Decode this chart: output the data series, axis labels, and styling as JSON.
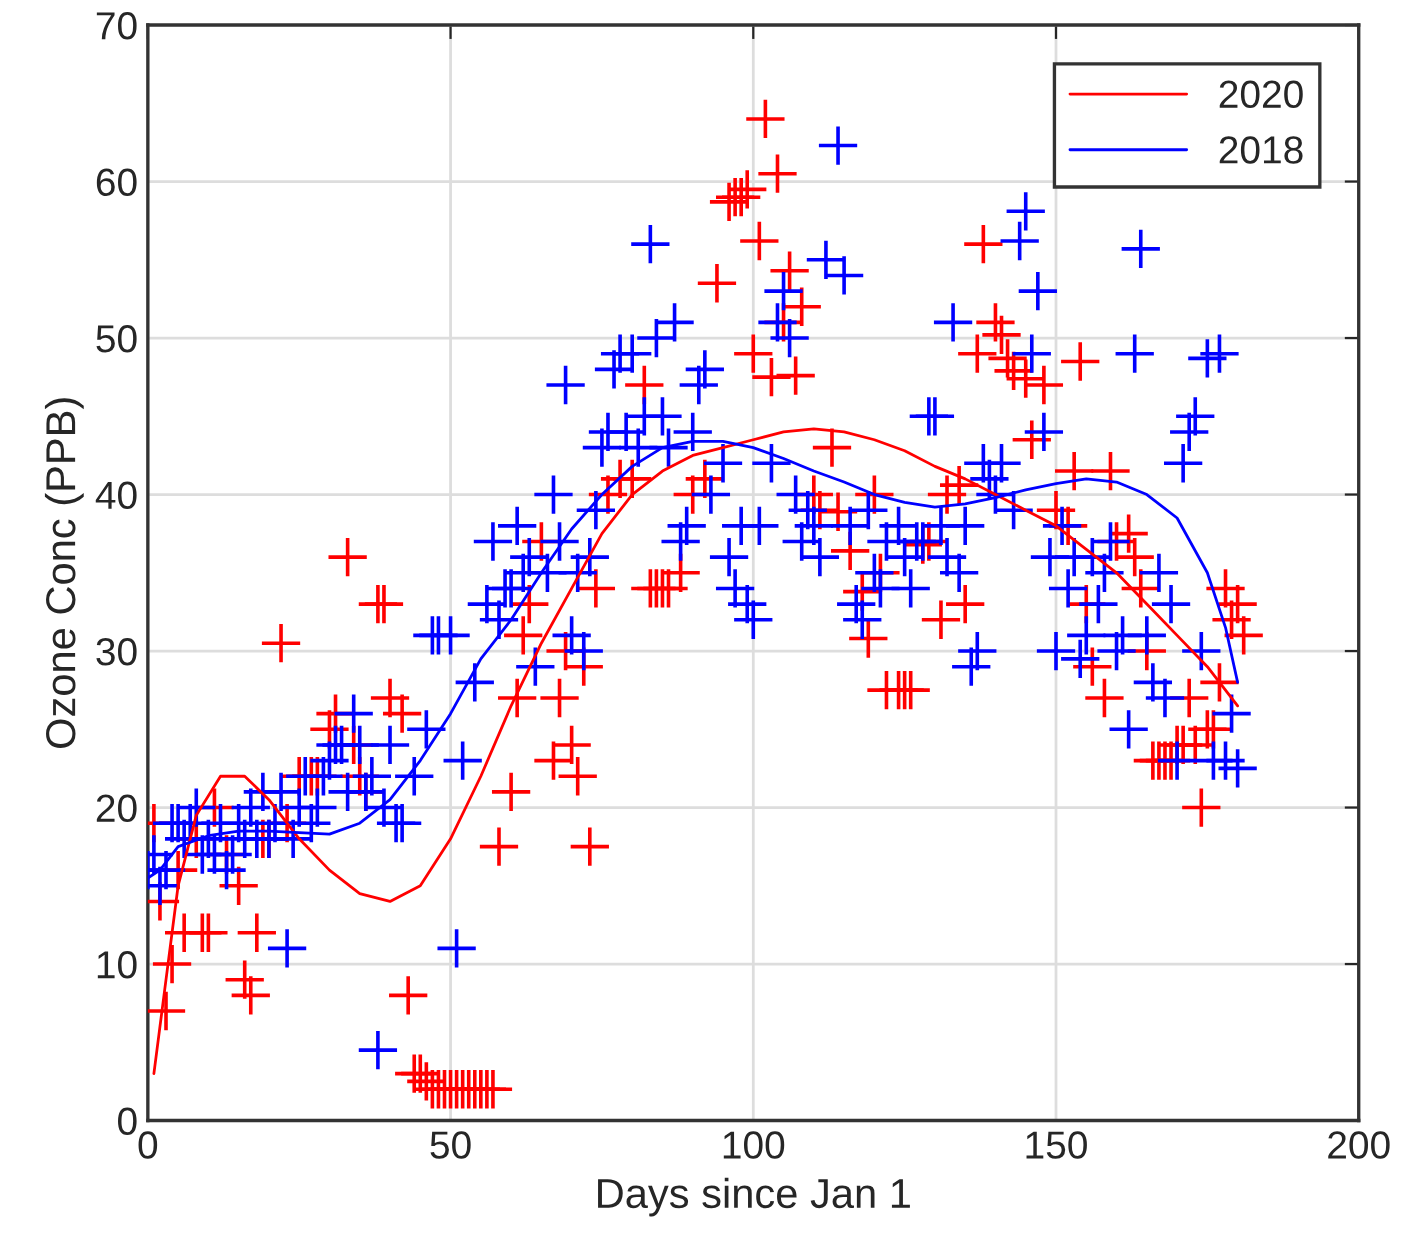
{
  "chart_data": {
    "type": "scatter",
    "xlabel": "Days since Jan 1",
    "ylabel": "Ozone Conc (PPB)",
    "xlim": [
      0,
      200
    ],
    "ylim": [
      0,
      70
    ],
    "xticks": [
      0,
      50,
      100,
      150,
      200
    ],
    "yticks": [
      0,
      10,
      20,
      30,
      40,
      50,
      60,
      70
    ],
    "grid": true,
    "legend": "top right",
    "marker": "cross",
    "series": [
      {
        "color": "#ff0000",
        "x": [
          1,
          2,
          3,
          4,
          5,
          6,
          8,
          9,
          10,
          11,
          13,
          15,
          16,
          17,
          18,
          19,
          20,
          22,
          23,
          25,
          27,
          28,
          30,
          31,
          33,
          34,
          35,
          36,
          38,
          39,
          40,
          42,
          43,
          44,
          45,
          46,
          47,
          48,
          49,
          50,
          51,
          52,
          53,
          54,
          55,
          56,
          57,
          58,
          60,
          61,
          62,
          63,
          65,
          67,
          68,
          69,
          70,
          71,
          72,
          73,
          74,
          76,
          78,
          80,
          82,
          83,
          84,
          85,
          86,
          88,
          90,
          92,
          94,
          96,
          97,
          98,
          99,
          100,
          101,
          102,
          103,
          104,
          105,
          106,
          107,
          108,
          110,
          111,
          113,
          114,
          116,
          118,
          119,
          120,
          121,
          122,
          124,
          125,
          126,
          128,
          129,
          131,
          132,
          134,
          135,
          137,
          138,
          140,
          141,
          142,
          143,
          145,
          146,
          148,
          150,
          152,
          153,
          154,
          155,
          156,
          158,
          159,
          160,
          162,
          163,
          164,
          165,
          166,
          167,
          168,
          169,
          170,
          171,
          172,
          173,
          174,
          175,
          176,
          177,
          178,
          179,
          180,
          181
        ],
        "values": [
          19,
          14,
          7,
          10,
          16,
          12,
          18,
          12,
          12,
          20,
          17,
          15,
          9,
          8,
          12,
          18,
          18,
          30.5,
          19,
          22,
          22,
          22,
          25,
          26,
          36,
          24,
          22,
          21,
          33,
          33,
          27,
          26,
          8,
          3,
          3,
          2.5,
          2,
          2,
          2,
          2,
          2,
          2,
          2,
          2,
          2,
          2,
          2,
          17.5,
          21,
          27,
          31,
          33,
          37,
          23,
          27,
          30,
          24,
          22,
          29,
          17.5,
          34,
          40,
          41,
          41,
          47,
          34,
          34,
          34,
          34,
          35,
          40,
          41,
          53.5,
          58.7,
          59,
          59,
          59.5,
          49,
          56.2,
          64,
          47.5,
          60.5,
          51,
          54.3,
          47.6,
          52,
          40,
          39,
          43,
          38.9,
          36.4,
          33.8,
          30.8,
          40,
          35,
          27.5,
          27.5,
          27.5,
          27.5,
          36.8,
          37,
          32,
          40,
          40.6,
          33,
          49,
          56,
          51,
          50.2,
          48.7,
          47.9,
          47.4,
          43.5,
          47,
          39,
          38,
          41.5,
          48.5,
          33,
          29,
          27,
          41.5,
          37,
          37.5,
          36,
          34,
          30,
          23,
          23,
          23,
          23,
          24,
          24,
          27,
          24,
          20,
          25,
          25,
          28,
          34,
          32,
          33,
          31
        ]
      },
      {
        "color": "#0000ff",
        "x": [
          0,
          1,
          2,
          3,
          4,
          5,
          6,
          7,
          8,
          9,
          10,
          11,
          12,
          13,
          14,
          15,
          16,
          17,
          18,
          19,
          20,
          21,
          22,
          23,
          24,
          25,
          26,
          27,
          28,
          29,
          30,
          31,
          32,
          33,
          34,
          35,
          36,
          37,
          38,
          39,
          40,
          41,
          42,
          44,
          46,
          47,
          48,
          50,
          51,
          52,
          54,
          56,
          57,
          58,
          59,
          60,
          61,
          62,
          63,
          64,
          66,
          67,
          68,
          69,
          70,
          71,
          72,
          73,
          74,
          75,
          76,
          77,
          78,
          79,
          80,
          81,
          82,
          83,
          84,
          85,
          86,
          87,
          88,
          89,
          90,
          91,
          92,
          93,
          95,
          96,
          97,
          98,
          99,
          100,
          101,
          103,
          104,
          105,
          106,
          107,
          108,
          109,
          110,
          111,
          112,
          114,
          115,
          116,
          117,
          118,
          119,
          120,
          121,
          122,
          124,
          125,
          126,
          127,
          128,
          129,
          130,
          131,
          132,
          133,
          134,
          135,
          136,
          137,
          138,
          139,
          140,
          141,
          143,
          144,
          145,
          146,
          147,
          148,
          149,
          150,
          151,
          152,
          153,
          154,
          155,
          156,
          157,
          158,
          159,
          160,
          161,
          162,
          163,
          164,
          165,
          166,
          167,
          168,
          169,
          170,
          171,
          172,
          173,
          174,
          175,
          176,
          177,
          178,
          179,
          180
        ],
        "values": [
          16,
          17,
          15,
          16,
          19,
          19,
          18,
          19,
          20,
          17,
          18,
          17,
          19,
          16,
          17,
          19,
          18,
          20,
          18,
          21,
          18,
          19,
          21,
          11,
          18,
          20,
          22,
          19,
          20,
          22,
          23,
          24,
          24,
          21,
          26,
          24,
          21,
          22,
          4.5,
          20,
          24,
          19,
          19,
          22,
          25,
          31,
          31,
          31,
          11,
          23,
          28,
          33,
          37,
          32,
          34,
          34,
          38,
          35,
          36,
          29,
          35,
          40,
          37,
          47,
          31,
          35,
          30,
          36,
          39,
          43,
          44,
          48,
          49,
          44,
          49,
          43,
          45,
          56,
          50,
          45,
          43,
          51,
          37,
          38,
          44,
          47,
          48,
          40,
          42,
          36,
          34,
          38,
          33,
          32,
          38,
          42,
          51,
          53,
          50,
          40,
          37,
          39,
          38,
          36,
          55,
          62.3,
          54,
          38,
          33,
          32,
          39,
          35,
          34,
          37,
          38,
          36,
          34,
          37,
          37,
          45,
          45,
          38,
          36,
          51,
          35,
          38,
          29,
          30,
          42,
          41,
          40,
          42,
          39,
          56.2,
          58.1,
          49,
          53,
          44,
          36,
          30,
          38,
          34,
          36,
          29.5,
          31,
          36,
          33,
          35,
          37,
          30,
          31,
          25,
          49,
          55.7,
          31,
          28,
          35,
          27,
          33,
          23,
          42,
          44,
          45,
          30,
          48.7,
          23,
          49,
          23,
          26,
          22.5
        ]
      },
      {
        "type": "line",
        "name": "2020",
        "marker": "none",
        "color": "#ff0000",
        "x": [
          1,
          3,
          5,
          8,
          12,
          16,
          20,
          25,
          30,
          35,
          40,
          45,
          50,
          55,
          60,
          65,
          70,
          75,
          80,
          85,
          90,
          95,
          100,
          105,
          110,
          115,
          120,
          125,
          130,
          135,
          140,
          145,
          150,
          155,
          160,
          165,
          170,
          175,
          180
        ],
        "values": [
          3,
          9,
          15,
          19.5,
          22,
          22,
          20.5,
          18,
          16,
          14.5,
          14,
          15,
          18,
          22,
          26.5,
          30.5,
          34,
          37.5,
          40,
          41.5,
          42.5,
          43,
          43.5,
          44,
          44.2,
          44,
          43.5,
          42.8,
          41.8,
          41,
          40,
          39,
          38,
          36.5,
          35,
          33,
          31,
          29,
          26.5
        ]
      },
      {
        "type": "line",
        "name": "2018",
        "marker": "none",
        "color": "#0000ff",
        "x": [
          0,
          2,
          5,
          10,
          15,
          20,
          25,
          30,
          35,
          40,
          45,
          50,
          55,
          60,
          65,
          70,
          75,
          80,
          85,
          90,
          95,
          100,
          105,
          110,
          115,
          120,
          125,
          130,
          135,
          140,
          145,
          150,
          155,
          160,
          165,
          170,
          175,
          178,
          180
        ],
        "values": [
          15.5,
          16,
          17.5,
          18.2,
          18.5,
          18.5,
          18.4,
          18.3,
          19,
          20.5,
          23,
          26,
          29.5,
          32,
          35,
          37.8,
          40,
          41.8,
          43,
          43.4,
          43.4,
          43,
          42.3,
          41.5,
          40.8,
          40,
          39.5,
          39.2,
          39.4,
          39.8,
          40.3,
          40.7,
          41,
          40.8,
          40,
          38.5,
          35,
          31.5,
          28
        ]
      }
    ]
  }
}
